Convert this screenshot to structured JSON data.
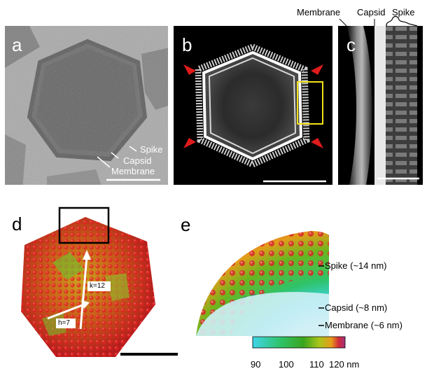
{
  "panels": {
    "a": {
      "label": "a",
      "annotations": {
        "spike": "Spike",
        "capsid": "Capsid",
        "membrane": "Membrane"
      }
    },
    "b": {
      "label": "b"
    },
    "c": {
      "label": "c",
      "annotations": {
        "membrane": "Membrane",
        "capsid": "Capsid",
        "spike": "Spike"
      }
    },
    "d": {
      "label": "d",
      "vectors": {
        "k": "k=12",
        "h": "h=7"
      }
    },
    "e": {
      "label": "e",
      "annotations": {
        "spike": "Spike (~14 nm)",
        "capsid": "Capsid (~8 nm)",
        "membrane": "Membrane (~6 nm)"
      }
    }
  },
  "colorbar": {
    "ticks": [
      "90",
      "100",
      "110",
      "120 nm"
    ],
    "colors": [
      "#3fd4e8",
      "#2fc36a",
      "#3aa51e",
      "#a9c51a",
      "#e59c1a",
      "#d22a3a",
      "#a0327a"
    ]
  }
}
